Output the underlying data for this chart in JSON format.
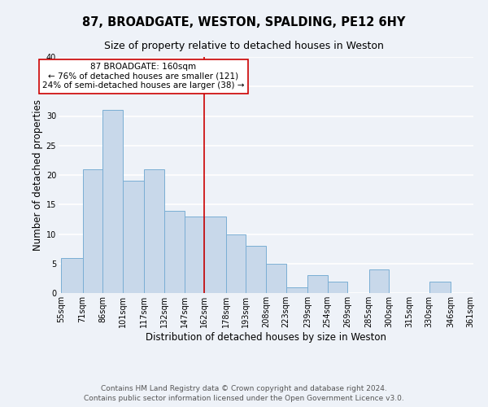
{
  "title": "87, BROADGATE, WESTON, SPALDING, PE12 6HY",
  "subtitle": "Size of property relative to detached houses in Weston",
  "xlabel": "Distribution of detached houses by size in Weston",
  "ylabel": "Number of detached properties",
  "bar_left_edges": [
    55,
    71,
    86,
    101,
    117,
    132,
    147,
    162,
    178,
    193,
    208,
    223,
    239,
    254,
    269,
    285,
    300,
    315,
    330,
    346
  ],
  "bar_widths": [
    16,
    15,
    15,
    16,
    15,
    15,
    15,
    16,
    15,
    15,
    15,
    16,
    15,
    15,
    15,
    15,
    15,
    15,
    16,
    15
  ],
  "bar_heights": [
    6,
    21,
    31,
    19,
    21,
    14,
    13,
    13,
    10,
    8,
    5,
    1,
    3,
    2,
    0,
    4,
    0,
    0,
    2,
    0
  ],
  "tick_labels": [
    "55sqm",
    "71sqm",
    "86sqm",
    "101sqm",
    "117sqm",
    "132sqm",
    "147sqm",
    "162sqm",
    "178sqm",
    "193sqm",
    "208sqm",
    "223sqm",
    "239sqm",
    "254sqm",
    "269sqm",
    "285sqm",
    "300sqm",
    "315sqm",
    "330sqm",
    "346sqm",
    "361sqm"
  ],
  "bar_color": "#c8d8ea",
  "bar_edge_color": "#7aaed4",
  "vline_x": 162,
  "vline_color": "#cc0000",
  "annotation_box_color": "#cc0000",
  "annotation_text_line1": "87 BROADGATE: 160sqm",
  "annotation_text_line2": "← 76% of detached houses are smaller (121)",
  "annotation_text_line3": "24% of semi-detached houses are larger (38) →",
  "ylim": [
    0,
    40
  ],
  "yticks": [
    0,
    5,
    10,
    15,
    20,
    25,
    30,
    35,
    40
  ],
  "footer_line1": "Contains HM Land Registry data © Crown copyright and database right 2024.",
  "footer_line2": "Contains public sector information licensed under the Open Government Licence v3.0.",
  "background_color": "#eef2f8",
  "grid_color": "#ffffff",
  "title_fontsize": 10.5,
  "subtitle_fontsize": 9,
  "axis_label_fontsize": 8.5,
  "tick_fontsize": 7,
  "footer_fontsize": 6.5,
  "annotation_fontsize": 7.5
}
